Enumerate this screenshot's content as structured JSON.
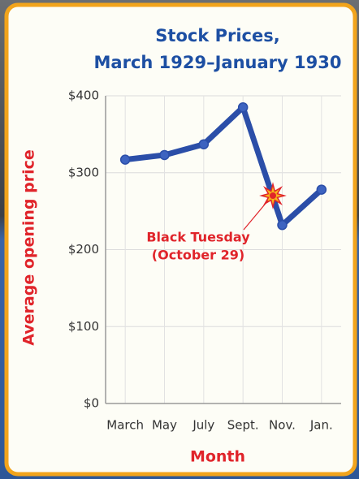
{
  "chart_data": {
    "type": "line",
    "title": [
      "Stock Prices,",
      "March 1929–January 1930"
    ],
    "x_label": "Month",
    "y_label": "Average opening price",
    "categories": [
      "March",
      "May",
      "July",
      "Sept.",
      "Nov.",
      "Jan."
    ],
    "series": [
      {
        "name": "Average opening price",
        "color": "#2b4ea8",
        "values": [
          317,
          323,
          337,
          385,
          232,
          278
        ]
      }
    ],
    "ylim": [
      0,
      400
    ],
    "yticks": [
      {
        "value": 0,
        "label": "$0"
      },
      {
        "value": 100,
        "label": "$100"
      },
      {
        "value": 200,
        "label": "$200"
      },
      {
        "value": 300,
        "label": "$300"
      },
      {
        "value": 400,
        "label": "$400"
      }
    ],
    "grid": true,
    "annotations": [
      "Black Tuesday",
      "(October 29)"
    ]
  }
}
